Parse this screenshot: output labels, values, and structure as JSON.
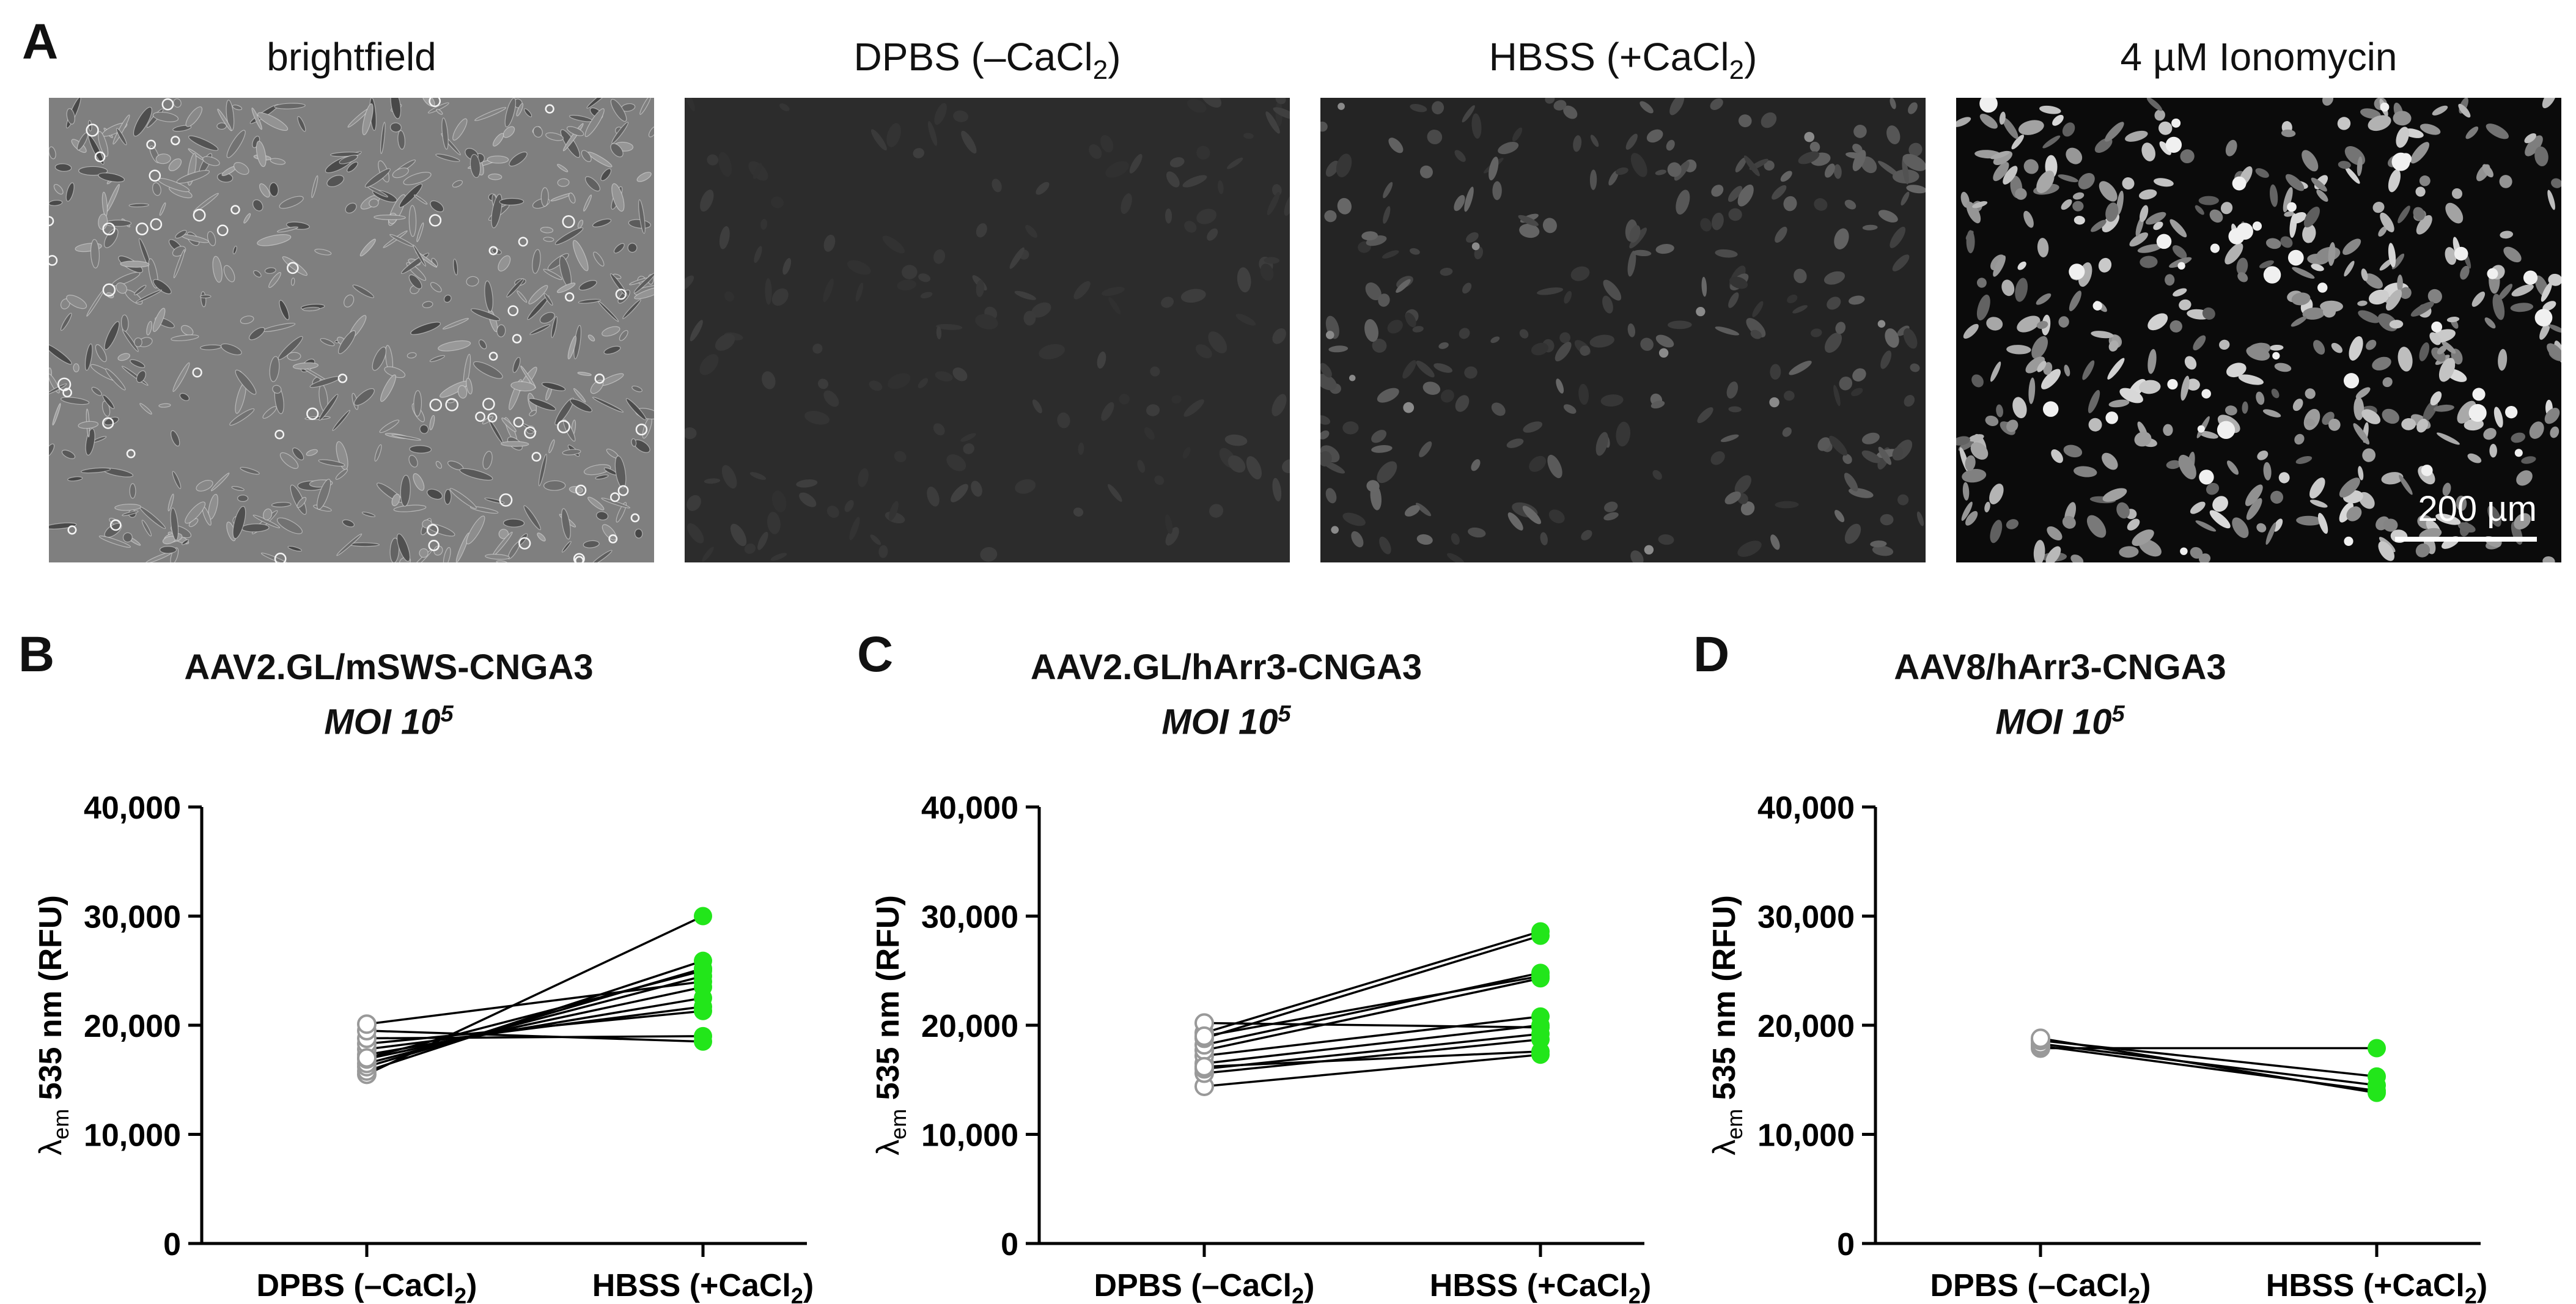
{
  "panel_a": {
    "letter": "A",
    "images": [
      {
        "title": "brightfield",
        "style": "brightfield"
      },
      {
        "title": "DPBS (–CaCl",
        "title_sub": "2",
        "title_end": ")",
        "style": "dim"
      },
      {
        "title": "HBSS (+CaCl",
        "title_sub": "2",
        "title_end": ")",
        "style": "medium"
      },
      {
        "title": "4 µM Ionomycin",
        "style": "bright",
        "scalebar": "200 µm"
      }
    ]
  },
  "colors": {
    "hbss_marker": "#22e61a",
    "dpbs_marker_stroke": "#999999",
    "line": "#000000"
  },
  "chart_data": [
    {
      "letter": "B",
      "type": "scatter",
      "title": "AAV2.GL/mSWS-CNGA3",
      "subtitle_base": "MOI 10",
      "subtitle_exp": "5",
      "ylabel_main": "λ",
      "ylabel_sub": "em",
      "ylabel_rest": " 535 nm  (RFU)",
      "categories": [
        "DPBS (–CaCl",
        "HBSS (+CaCl"
      ],
      "category_sub": "2",
      "category_end": ")",
      "ylim": [
        0,
        40000
      ],
      "yticks": [
        "0",
        "10,000",
        "20,000",
        "30,000",
        "40,000"
      ],
      "pairs": [
        [
          15500,
          30000
        ],
        [
          15800,
          25900
        ],
        [
          16200,
          25200
        ],
        [
          16500,
          24500
        ],
        [
          16900,
          23500
        ],
        [
          17300,
          22500
        ],
        [
          17800,
          21700
        ],
        [
          18300,
          21300
        ],
        [
          18800,
          19000
        ],
        [
          19500,
          18500
        ],
        [
          20100,
          24000
        ],
        [
          17000,
          25000
        ]
      ]
    },
    {
      "letter": "C",
      "type": "scatter",
      "title": "AAV2.GL/hArr3-CNGA3",
      "subtitle_base": "MOI 10",
      "subtitle_exp": "5",
      "ylabel_main": "λ",
      "ylabel_sub": "em",
      "ylabel_rest": " 535 nm  (RFU)",
      "categories": [
        "DPBS (–CaCl",
        "HBSS (+CaCl"
      ],
      "category_sub": "2",
      "category_end": ")",
      "ylim": [
        0,
        40000
      ],
      "yticks": [
        "0",
        "10,000",
        "20,000",
        "30,000",
        "40,000"
      ],
      "pairs": [
        [
          14400,
          17300
        ],
        [
          15600,
          18700
        ],
        [
          16000,
          19200
        ],
        [
          16500,
          20000
        ],
        [
          17200,
          20800
        ],
        [
          17700,
          24300
        ],
        [
          18200,
          24800
        ],
        [
          18800,
          28200
        ],
        [
          19300,
          28600
        ],
        [
          20200,
          19800
        ],
        [
          16200,
          17600
        ],
        [
          19000,
          24500
        ]
      ]
    },
    {
      "letter": "D",
      "type": "scatter",
      "title": "AAV8/hArr3-CNGA3",
      "subtitle_base": "MOI 10",
      "subtitle_exp": "5",
      "ylabel_main": "λ",
      "ylabel_sub": "em",
      "ylabel_rest": " 535 nm  (RFU)",
      "categories": [
        "DPBS (–CaCl",
        "HBSS (+CaCl"
      ],
      "category_sub": "2",
      "category_end": ")",
      "ylim": [
        0,
        40000
      ],
      "yticks": [
        "0",
        "10,000",
        "20,000",
        "30,000",
        "40,000"
      ],
      "pairs": [
        [
          17900,
          17900
        ],
        [
          18100,
          14000
        ],
        [
          18300,
          14500
        ],
        [
          18600,
          15300
        ],
        [
          18800,
          13800
        ]
      ]
    }
  ]
}
